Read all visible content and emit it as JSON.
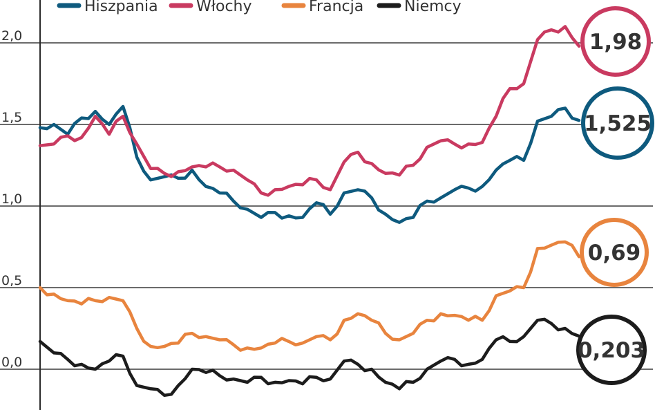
{
  "chart_data": {
    "type": "line",
    "title": "",
    "xlabel": "",
    "ylabel": "",
    "ylim": [
      -0.25,
      2.25
    ],
    "yticks": [
      "2,0",
      "1,5",
      "1,0",
      "0,5",
      "0,0"
    ],
    "ytick_values": [
      2.0,
      1.5,
      1.0,
      0.5,
      0.0
    ],
    "grid": "horizontal",
    "legend_position": "top",
    "n_points": 40,
    "series": [
      {
        "name": "Hiszpania",
        "color": "#0e5a7e",
        "last_label": "1,525",
        "values": [
          1.48,
          1.5,
          1.44,
          1.54,
          1.58,
          1.5,
          1.61,
          1.3,
          1.16,
          1.18,
          1.17,
          1.22,
          1.12,
          1.08,
          1.03,
          0.98,
          0.93,
          0.96,
          0.94,
          0.93,
          1.02,
          0.95,
          1.08,
          1.1,
          1.05,
          0.95,
          0.9,
          0.93,
          1.03,
          1.05,
          1.1,
          1.11,
          1.12,
          1.22,
          1.28,
          1.28,
          1.52,
          1.55,
          1.6,
          1.525
        ]
      },
      {
        "name": "Włochy",
        "color": "#c93a60",
        "last_label": "1,98",
        "values": [
          1.37,
          1.38,
          1.43,
          1.42,
          1.55,
          1.44,
          1.55,
          1.38,
          1.23,
          1.2,
          1.21,
          1.24,
          1.24,
          1.24,
          1.22,
          1.16,
          1.08,
          1.1,
          1.12,
          1.13,
          1.16,
          1.1,
          1.27,
          1.33,
          1.26,
          1.2,
          1.19,
          1.25,
          1.36,
          1.4,
          1.38,
          1.38,
          1.39,
          1.55,
          1.72,
          1.75,
          2.02,
          2.08,
          2.1,
          1.98
        ]
      },
      {
        "name": "Francja",
        "color": "#e8843e",
        "last_label": "0,69",
        "values": [
          0.5,
          0.46,
          0.42,
          0.4,
          0.42,
          0.44,
          0.42,
          0.25,
          0.14,
          0.14,
          0.16,
          0.22,
          0.2,
          0.18,
          0.15,
          0.13,
          0.13,
          0.16,
          0.17,
          0.16,
          0.2,
          0.18,
          0.3,
          0.34,
          0.3,
          0.22,
          0.18,
          0.22,
          0.3,
          0.34,
          0.33,
          0.3,
          0.3,
          0.45,
          0.48,
          0.5,
          0.74,
          0.76,
          0.78,
          0.69
        ]
      },
      {
        "name": "Niemcy",
        "color": "#1c1c1c",
        "last_label": "0,203",
        "values": [
          0.17,
          0.1,
          0.06,
          0.03,
          0.0,
          0.05,
          0.08,
          -0.1,
          -0.12,
          -0.16,
          -0.1,
          0.0,
          -0.02,
          -0.04,
          -0.06,
          -0.08,
          -0.05,
          -0.08,
          -0.07,
          -0.09,
          -0.05,
          -0.06,
          0.05,
          0.03,
          0.0,
          -0.08,
          -0.12,
          -0.08,
          0.0,
          0.05,
          0.06,
          0.03,
          0.06,
          0.18,
          0.17,
          0.2,
          0.3,
          0.28,
          0.25,
          0.203
        ]
      }
    ]
  }
}
